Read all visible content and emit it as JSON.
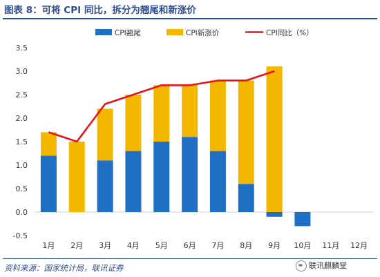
{
  "header": {
    "title": "图表 8：可将 CPI 同比，拆分为翘尾和新涨价"
  },
  "footer": {
    "source": "资料来源：国家统计局，联讯证券",
    "watermark": "联讯麒麟堂"
  },
  "chart_data": {
    "type": "bar",
    "stacked": true,
    "categories": [
      "1月",
      "2月",
      "3月",
      "4月",
      "5月",
      "6月",
      "7月",
      "8月",
      "9月",
      "10月",
      "11月",
      "12月"
    ],
    "series": [
      {
        "name": "CPI翘尾",
        "kind": "bar",
        "color": "#1f6fc5",
        "values": [
          1.2,
          0.0,
          1.1,
          1.3,
          1.5,
          1.6,
          1.3,
          0.6,
          -0.1,
          -0.3,
          null,
          null
        ]
      },
      {
        "name": "CPI新涨价",
        "kind": "bar",
        "color": "#f5b800",
        "values": [
          0.5,
          1.5,
          1.1,
          1.2,
          1.2,
          1.1,
          1.5,
          2.2,
          3.1,
          null,
          null,
          null
        ]
      },
      {
        "name": "CPI同比（%）",
        "kind": "line",
        "color": "#e8141c",
        "values": [
          1.7,
          1.5,
          2.3,
          2.5,
          2.7,
          2.7,
          2.8,
          2.8,
          3.0,
          null,
          null,
          null
        ]
      }
    ],
    "y_ticks": [
      "-0.5",
      "0.0",
      "0.5",
      "1.0",
      "1.5",
      "2.0",
      "2.5",
      "3.0",
      "3.5"
    ],
    "ylim": [
      -0.5,
      3.5
    ],
    "grid": false,
    "legend_position": "top-center"
  }
}
